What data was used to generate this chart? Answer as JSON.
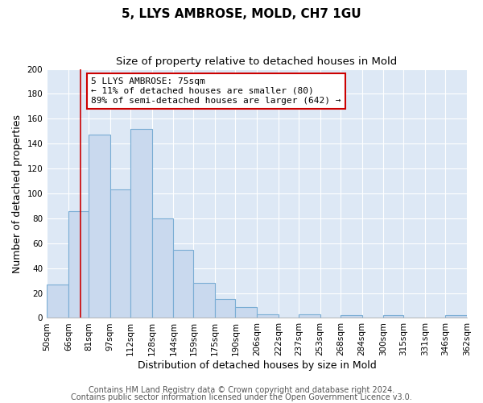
{
  "title": "5, LLYS AMBROSE, MOLD, CH7 1GU",
  "subtitle": "Size of property relative to detached houses in Mold",
  "xlabel": "Distribution of detached houses by size in Mold",
  "ylabel": "Number of detached properties",
  "bin_labels": [
    "50sqm",
    "66sqm",
    "81sqm",
    "97sqm",
    "112sqm",
    "128sqm",
    "144sqm",
    "159sqm",
    "175sqm",
    "190sqm",
    "206sqm",
    "222sqm",
    "237sqm",
    "253sqm",
    "268sqm",
    "284sqm",
    "300sqm",
    "315sqm",
    "331sqm",
    "346sqm",
    "362sqm"
  ],
  "bin_edges": [
    50,
    66,
    81,
    97,
    112,
    128,
    144,
    159,
    175,
    190,
    206,
    222,
    237,
    253,
    268,
    284,
    300,
    315,
    331,
    346,
    362
  ],
  "bar_heights": [
    27,
    86,
    147,
    103,
    152,
    80,
    55,
    28,
    15,
    9,
    3,
    0,
    3,
    0,
    2,
    0,
    2,
    0,
    0,
    2
  ],
  "bar_color": "#c9d9ee",
  "bar_edge_color": "#7aadd4",
  "ylim": [
    0,
    200
  ],
  "yticks": [
    0,
    20,
    40,
    60,
    80,
    100,
    120,
    140,
    160,
    180,
    200
  ],
  "property_line_x": 75,
  "property_line_color": "#cc0000",
  "annotation_text": "5 LLYS AMBROSE: 75sqm\n← 11% of detached houses are smaller (80)\n89% of semi-detached houses are larger (642) →",
  "annotation_box_color": "#ffffff",
  "annotation_box_edge_color": "#cc0000",
  "footer_line1": "Contains HM Land Registry data © Crown copyright and database right 2024.",
  "footer_line2": "Contains public sector information licensed under the Open Government Licence v3.0.",
  "figure_background_color": "#ffffff",
  "plot_background_color": "#dde8f5",
  "title_fontsize": 11,
  "subtitle_fontsize": 9.5,
  "axis_label_fontsize": 9,
  "tick_fontsize": 7.5,
  "footer_fontsize": 7,
  "annotation_fontsize": 8
}
